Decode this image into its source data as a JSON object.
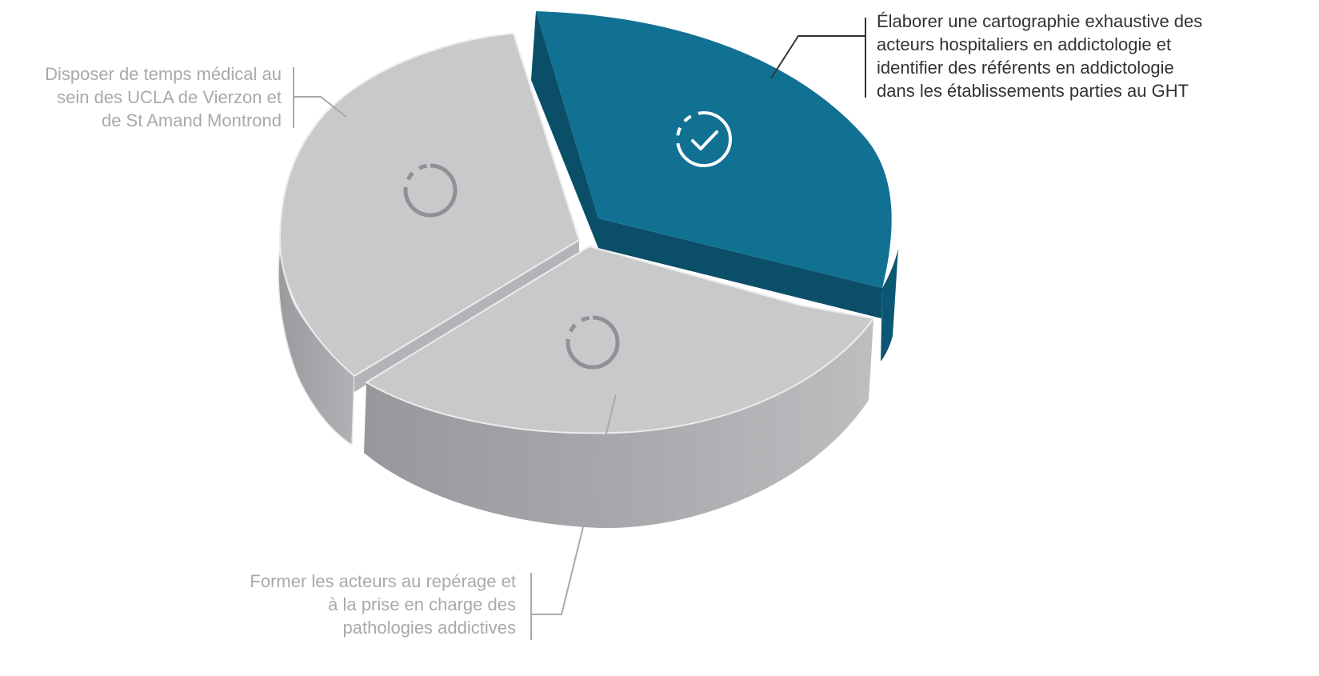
{
  "colors": {
    "accent_top": "#117193",
    "accent_side": "#0a4e68",
    "gray_top": "#c8c9cb",
    "gray_side": "#a3a4a7",
    "gray_icon": "#8f9194",
    "white": "#ffffff"
  },
  "segments": [
    {
      "id": "cartographie",
      "status": "done",
      "icon": "check-circle-icon",
      "label_lines": [
        "Élaborer une cartographie exhaustive des",
        "acteurs hospitaliers en addictologie et",
        "identifier des référents en addictologie",
        "dans les établissements parties au GHT"
      ]
    },
    {
      "id": "temps-medical",
      "status": "pending",
      "icon": "progress-circle-icon",
      "label_lines": [
        "Disposer de temps médical au",
        "sein des UCLA de Vierzon et",
        "de St Amand Montrond"
      ]
    },
    {
      "id": "formation",
      "status": "pending",
      "icon": "progress-circle-icon",
      "label_lines": [
        "Former les acteurs au repérage et",
        "à la prise en charge des",
        "pathologies addictives"
      ]
    }
  ]
}
